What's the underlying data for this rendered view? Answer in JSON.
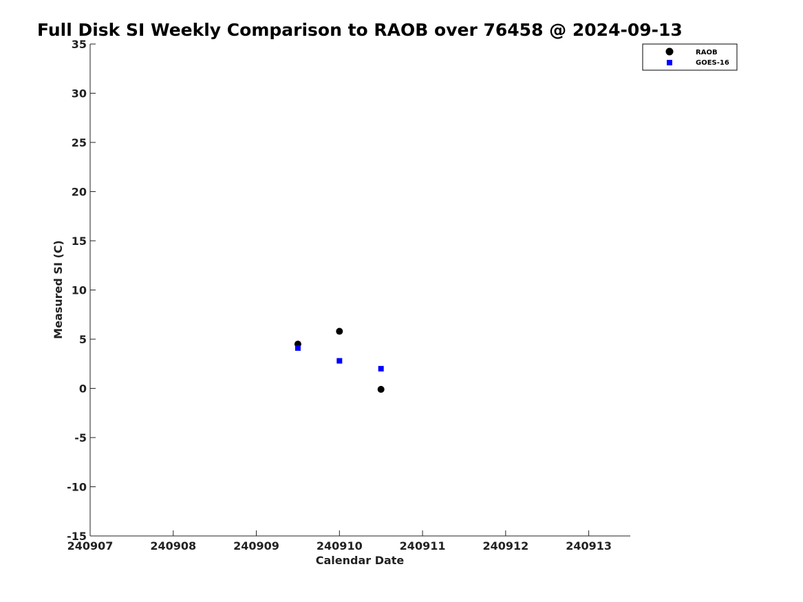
{
  "chart_data": {
    "type": "scatter",
    "title": "Full Disk SI Weekly Comparison to RAOB over 76458 @ 2024-09-13",
    "xlabel": "Calendar Date",
    "ylabel": "Measured SI (C)",
    "xlim": [
      240907,
      240913.5
    ],
    "ylim": [
      -15,
      35
    ],
    "xticks": [
      240907,
      240908,
      240909,
      240910,
      240911,
      240912,
      240913
    ],
    "xtick_labels": [
      "240907",
      "240908",
      "240909",
      "240910",
      "240911",
      "240912",
      "240913"
    ],
    "yticks": [
      35,
      30,
      25,
      20,
      15,
      10,
      5,
      0,
      -5,
      -10,
      -15
    ],
    "ytick_labels": [
      "35",
      "30",
      "25",
      "20",
      "15",
      "10",
      "5",
      "0",
      "-5",
      "-10",
      "-15"
    ],
    "grid": false,
    "legend_position": "top-right",
    "series": [
      {
        "name": "RAOB",
        "marker": "circle",
        "color": "#000000",
        "points": [
          {
            "x": 240909.5,
            "y": 4.5
          },
          {
            "x": 240910.0,
            "y": 5.8
          },
          {
            "x": 240910.5,
            "y": -0.1
          }
        ]
      },
      {
        "name": "GOES-16",
        "marker": "square",
        "color": "#0000ff",
        "points": [
          {
            "x": 240909.5,
            "y": 4.1
          },
          {
            "x": 240910.0,
            "y": 2.8
          },
          {
            "x": 240910.5,
            "y": 2.0
          }
        ]
      }
    ]
  }
}
